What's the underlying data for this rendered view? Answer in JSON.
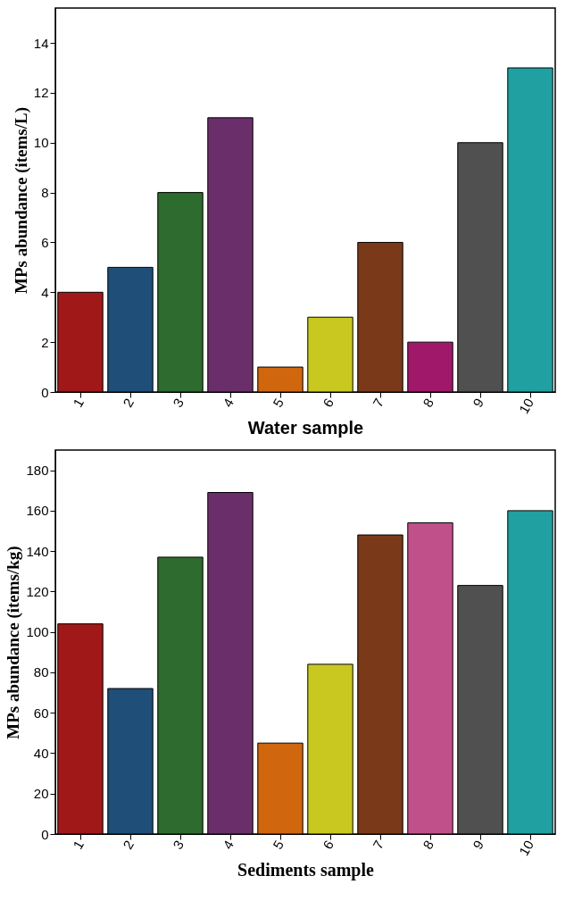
{
  "chart_data": [
    {
      "type": "bar",
      "xlabel": "Water sample",
      "ylabel": "MPs abundance (items/L)",
      "categories": [
        "1",
        "2",
        "3",
        "4",
        "5",
        "6",
        "7",
        "8",
        "9",
        "10"
      ],
      "values": [
        4,
        5,
        8,
        11,
        1,
        3,
        6,
        2,
        10,
        13
      ],
      "colors": [
        "#a01818",
        "#1f4e79",
        "#2e6b2e",
        "#6a2f6a",
        "#d0660e",
        "#c8c820",
        "#7a3a1a",
        "#a0186a",
        "#505050",
        "#20a0a0"
      ],
      "ylim": [
        0,
        15.4
      ],
      "yticks": [
        0,
        2,
        4,
        6,
        8,
        10,
        12,
        14
      ],
      "grid": false
    },
    {
      "type": "bar",
      "xlabel": "Sediments sample",
      "ylabel": "MPs abundance (items/kg)",
      "categories": [
        "1",
        "2",
        "3",
        "4",
        "5",
        "6",
        "7",
        "8",
        "9",
        "10"
      ],
      "values": [
        104,
        72,
        137,
        169,
        45,
        84,
        148,
        154,
        123,
        160
      ],
      "colors": [
        "#a01818",
        "#1f4e79",
        "#2e6b2e",
        "#6a2f6a",
        "#d0660e",
        "#c8c820",
        "#7a3a1a",
        "#c0508a",
        "#505050",
        "#20a0a0"
      ],
      "ylim": [
        0,
        190
      ],
      "yticks": [
        0,
        20,
        40,
        60,
        80,
        100,
        120,
        140,
        160,
        180
      ],
      "grid": false
    }
  ]
}
